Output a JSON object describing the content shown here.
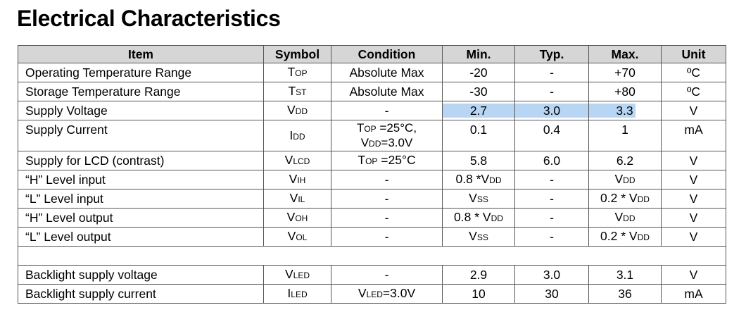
{
  "title": "Electrical Characteristics",
  "headers": {
    "item": "Item",
    "symbol": "Symbol",
    "condition": "Condition",
    "min": "Min.",
    "typ": "Typ.",
    "max": "Max.",
    "unit": "Unit"
  },
  "rows": [
    {
      "item": "Operating Temperature Range",
      "symbol": "T",
      "symbol_sub": "OP",
      "condition": "Absolute Max",
      "min": "-20",
      "typ": "-",
      "max": "+70",
      "unit": "ºC"
    },
    {
      "item": "Storage Temperature Range",
      "symbol": "T",
      "symbol_sub": "ST",
      "condition": "Absolute Max",
      "min": "-30",
      "typ": "-",
      "max": "+80",
      "unit": "ºC"
    },
    {
      "item": "Supply Voltage",
      "symbol": "V",
      "symbol_sub": "DD",
      "condition": "-",
      "min": "2.7",
      "typ": "3.0",
      "max": "3.3",
      "unit": "V"
    },
    {
      "item": "Supply Current",
      "symbol": "I",
      "symbol_sub": "DD",
      "condition_line1_a": "T",
      "condition_line1_sub": "OP",
      "condition_line1_b": " =25°C,",
      "condition_line2_a": "V",
      "condition_line2_sub": "DD",
      "condition_line2_b": "=3.0V",
      "min": "0.1",
      "typ": "0.4",
      "max": "1",
      "unit": "mA"
    },
    {
      "item": "Supply for LCD (contrast)",
      "symbol": "V",
      "symbol_sub": "LCD",
      "condition_a": "T",
      "condition_sub": "OP",
      "condition_b": " =25°C",
      "min": "5.8",
      "typ": "6.0",
      "max": "6.2",
      "unit": "V"
    },
    {
      "item": "“H” Level input",
      "symbol": "V",
      "symbol_sub": "IH",
      "condition": "-",
      "min_a": "0.8 *V",
      "min_sub": "DD",
      "typ": "-",
      "max_a": "V",
      "max_sub": "DD",
      "unit": "V"
    },
    {
      "item": "“L” Level input",
      "symbol": "V",
      "symbol_sub": "IL",
      "condition": "-",
      "min_a": "V",
      "min_sub": "SS",
      "typ": "-",
      "max_a": "0.2 * V",
      "max_sub": "DD",
      "unit": "V"
    },
    {
      "item": "“H” Level output",
      "symbol": "V",
      "symbol_sub": "OH",
      "condition": "-",
      "min_a": "0.8 * V",
      "min_sub": "DD",
      "typ": "-",
      "max_a": "V",
      "max_sub": "DD",
      "unit": "V"
    },
    {
      "item": "“L” Level output",
      "symbol": "V",
      "symbol_sub": "OL",
      "condition": "-",
      "min_a": "V",
      "min_sub": "SS",
      "typ": "-",
      "max_a": "0.2 * V",
      "max_sub": "DD",
      "unit": "V"
    },
    {
      "item": "Backlight supply voltage",
      "symbol": "V",
      "symbol_sub": "LED",
      "condition": "-",
      "min": "2.9",
      "typ": "3.0",
      "max": "3.1",
      "unit": "V"
    },
    {
      "item": "Backlight supply current",
      "symbol": "I",
      "symbol_sub": "LED",
      "condition_a": "V",
      "condition_sub": "LED",
      "condition_b": "=3.0V",
      "min": "10",
      "typ": "30",
      "max": "36",
      "unit": "mA"
    }
  ],
  "colors": {
    "header_bg": "#d6d6d6",
    "highlight": "#b8d6f3",
    "border": "#555555"
  }
}
